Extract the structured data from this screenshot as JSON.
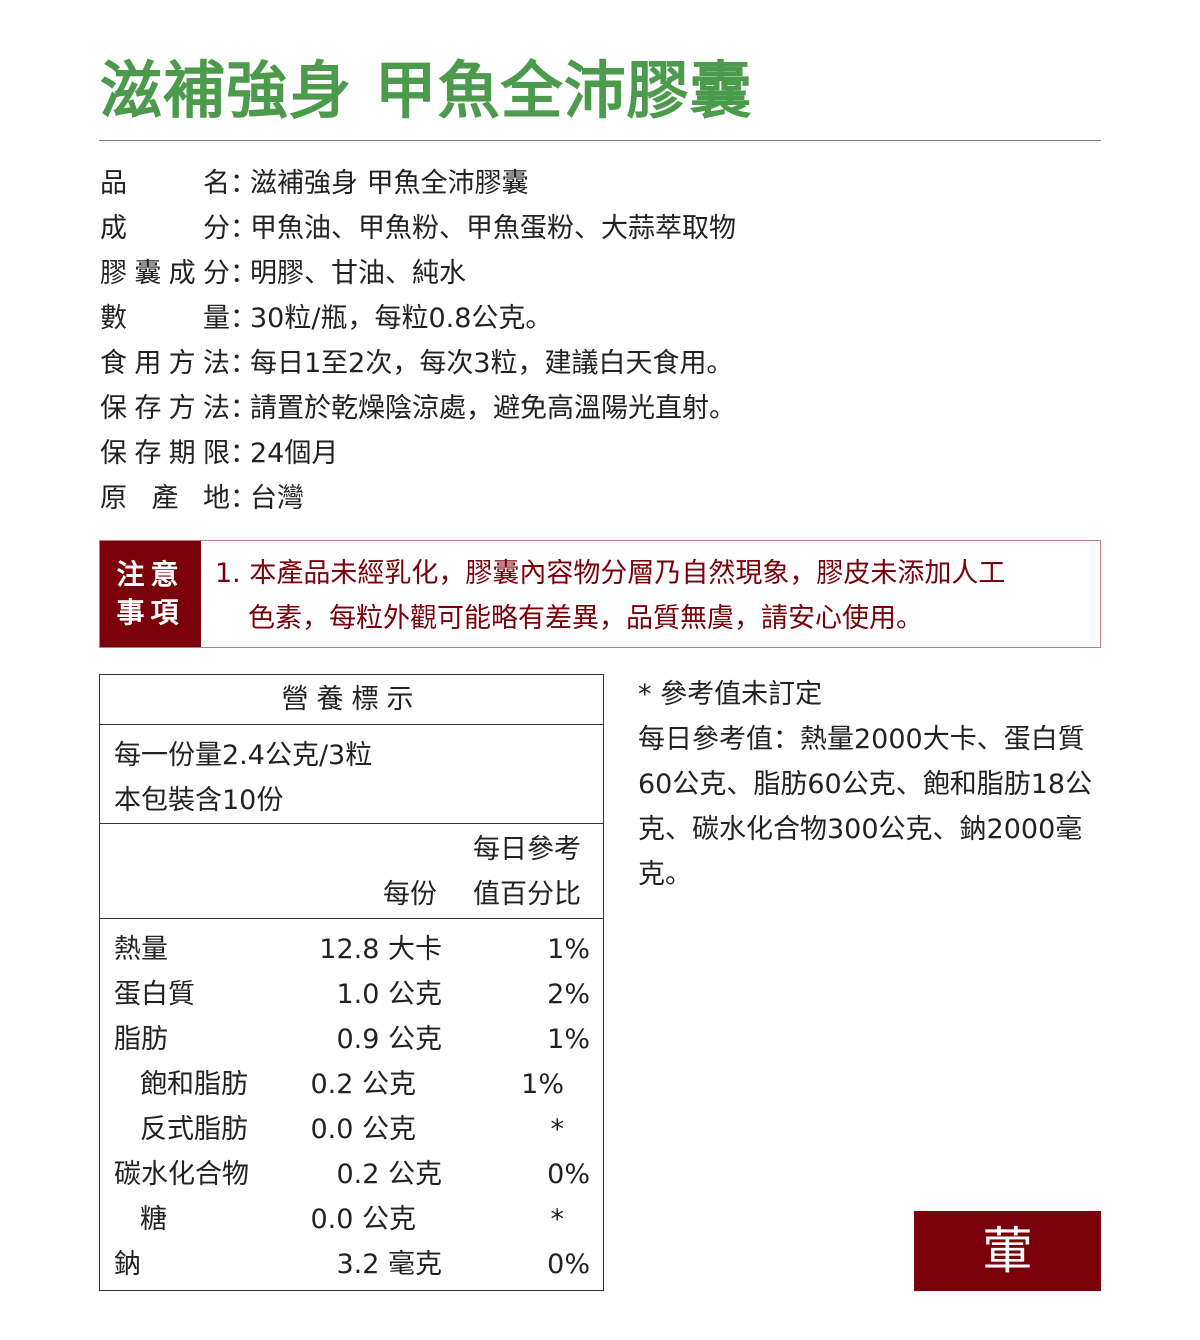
{
  "title": "滋補強身 甲魚全沛膠囊",
  "specs": [
    {
      "key": "品 名",
      "value": "滋補強身 甲魚全沛膠囊"
    },
    {
      "key": "成 分",
      "value": "甲魚油、甲魚粉、甲魚蛋粉、大蒜萃取物"
    },
    {
      "key": "膠囊成分",
      "value": "明膠、甘油、純水"
    },
    {
      "key": "數 量",
      "value": "30粒/瓶，每粒0.8公克。"
    },
    {
      "key": "食用方法",
      "value": "每日1至2次，每次3粒，建議白天食用。"
    },
    {
      "key": "保存方法",
      "value": "請置於乾燥陰涼處，避免高溫陽光直射。"
    },
    {
      "key": "保存期限",
      "value": "24個月"
    },
    {
      "key": "原 產 地",
      "value": "台灣"
    }
  ],
  "colon": "：",
  "notice": {
    "label_line1": "注意",
    "label_line2": "事項",
    "line1": "1. 本產品未經乳化，膠囊內容物分層乃自然現象，膠皮未添加人工",
    "line2": "色素，每粒外觀可能略有差異，品質無虞，請安心使用。"
  },
  "nutrition": {
    "title": "營養標示",
    "serving_size": "每一份量2.4公克/3粒",
    "servings": "本包裝含10份",
    "col_per": "每份",
    "col_daily1": "每日參考",
    "col_daily2": "值百分比",
    "rows": [
      {
        "name": "熱量",
        "value": "12.8 大卡",
        "pct": "1%"
      },
      {
        "name": "蛋白質",
        "value": "1.0 公克",
        "pct": "2%"
      },
      {
        "name": "脂肪",
        "value": "0.9 公克",
        "pct": "1%"
      },
      {
        "name": "飽和脂肪",
        "value": "0.2 公克",
        "pct": "1%"
      },
      {
        "name": "反式脂肪",
        "value": "0.0 公克",
        "pct": "*"
      },
      {
        "name": "碳水化合物",
        "value": "0.2 公克",
        "pct": "0%"
      },
      {
        "name": "糖",
        "value": "0.0 公克",
        "pct": "*"
      },
      {
        "name": "鈉",
        "value": "3.2 毫克",
        "pct": "0%"
      }
    ]
  },
  "notes": {
    "line1": "* 參考值未訂定",
    "line2": "每日參考值：熱量2000大卡、蛋白質60公克、脂肪60公克、飽和脂肪18公克、碳水化合物300公克、鈉2000毫克。"
  },
  "seal": "葷",
  "colors": {
    "title": "#4c9a4c",
    "accent": "#7a0009"
  }
}
